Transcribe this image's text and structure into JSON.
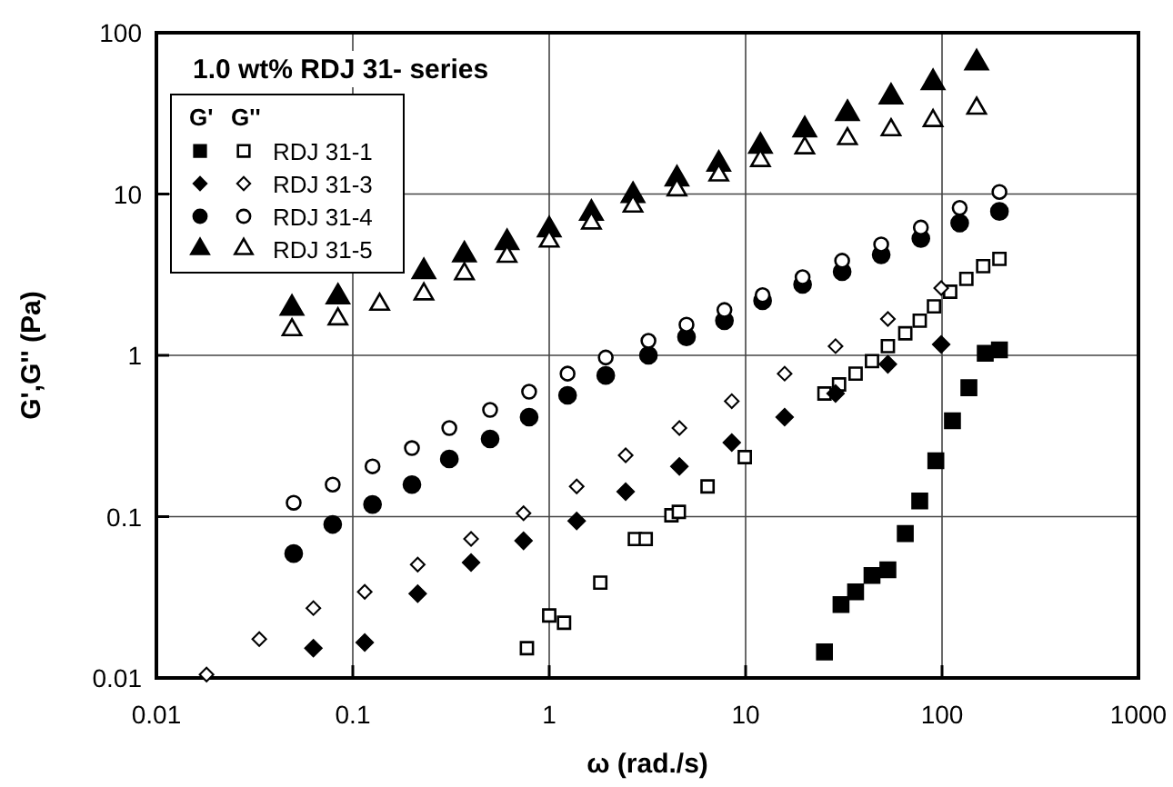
{
  "chart_data": {
    "type": "scatter",
    "title": "1.0 wt% RDJ 31- series",
    "xlabel": "ω (rad./s)",
    "ylabel": "G',G'' (Pa)",
    "log": "xy",
    "grid": true,
    "legend": "top left",
    "legend_title": "G'     G''",
    "xlim": [
      0.01,
      1000
    ],
    "xticks": [
      0.01,
      0.1,
      1,
      10,
      100,
      1000
    ],
    "ylim": [
      0.01,
      100
    ],
    "yticks": [
      0.01,
      0.1,
      1,
      10,
      100
    ],
    "series": [
      {
        "color": "#000000",
        "marker": "square",
        "x": [
          25.2,
          30.6,
          36.3,
          44,
          53,
          65,
          77,
          93,
          113,
          137,
          166,
          196
        ],
        "values": [
          0.0145,
          0.0285,
          0.0342,
          0.0432,
          0.0468,
          0.0785,
          0.125,
          0.222,
          0.393,
          0.63,
          1.03,
          1.08
        ]
      },
      {
        "name": "RDJ 31-1",
        "color": "#ffffff",
        "marker": "square",
        "x": [
          0.77,
          1.0,
          1.19,
          1.82,
          2.73,
          3.1,
          4.19,
          4.57,
          6.4,
          9.9,
          25.2,
          29.9,
          36.3,
          44,
          53,
          65,
          77,
          91,
          110,
          133,
          162,
          196
        ],
        "values": [
          0.0153,
          0.0244,
          0.022,
          0.039,
          0.0727,
          0.0727,
          0.102,
          0.107,
          0.154,
          0.234,
          0.58,
          0.66,
          0.77,
          0.92,
          1.14,
          1.37,
          1.64,
          2.01,
          2.48,
          2.98,
          3.57,
          3.96
        ]
      },
      {
        "color": "#000000",
        "marker": "diamond",
        "x": [
          0.063,
          0.115,
          0.214,
          0.4,
          0.74,
          1.38,
          2.45,
          4.6,
          8.5,
          15.8,
          28.7,
          53,
          99
        ],
        "values": [
          0.0153,
          0.0166,
          0.0333,
          0.052,
          0.0708,
          0.094,
          0.143,
          0.205,
          0.288,
          0.414,
          0.58,
          0.88,
          1.17
        ]
      },
      {
        "name": "RDJ 31-3",
        "color": "#ffffff",
        "marker": "diamond",
        "x": [
          0.018,
          0.0334,
          0.063,
          0.115,
          0.214,
          0.4,
          0.74,
          1.38,
          2.45,
          4.6,
          8.5,
          15.8,
          28.7,
          53,
          99
        ],
        "values": [
          0.0105,
          0.0174,
          0.0271,
          0.0342,
          0.0505,
          0.0727,
          0.105,
          0.154,
          0.24,
          0.354,
          0.52,
          0.77,
          1.14,
          1.68,
          2.61
        ]
      },
      {
        "color": "#000000",
        "marker": "circle",
        "x": [
          0.05,
          0.079,
          0.126,
          0.2,
          0.31,
          0.5,
          0.79,
          1.24,
          1.94,
          3.2,
          5.0,
          7.8,
          12.2,
          19.5,
          31,
          49,
          78,
          123,
          196
        ],
        "values": [
          0.059,
          0.0895,
          0.119,
          0.158,
          0.228,
          0.303,
          0.414,
          0.565,
          0.75,
          1.0,
          1.3,
          1.64,
          2.18,
          2.75,
          3.3,
          4.2,
          5.3,
          6.6,
          7.8
        ]
      },
      {
        "name": "RDJ 31-4",
        "color": "#ffffff",
        "marker": "circle",
        "x": [
          0.05,
          0.079,
          0.126,
          0.2,
          0.31,
          0.5,
          0.79,
          1.24,
          1.94,
          3.2,
          5.0,
          7.8,
          12.2,
          19.5,
          31,
          49,
          78,
          123,
          196
        ],
        "values": [
          0.122,
          0.158,
          0.205,
          0.266,
          0.354,
          0.459,
          0.595,
          0.77,
          0.97,
          1.23,
          1.55,
          1.91,
          2.36,
          3.05,
          3.86,
          4.87,
          6.2,
          8.2,
          10.3
        ]
      },
      {
        "color": "#000000",
        "marker": "triangle",
        "x": [
          0.049,
          0.084,
          0.23,
          0.37,
          0.61,
          1.0,
          1.64,
          2.67,
          4.47,
          7.3,
          11.9,
          20,
          33,
          55,
          90,
          150
        ],
        "values": [
          1.96,
          2.3,
          3.3,
          4.2,
          5.0,
          6.0,
          7.6,
          9.8,
          12.4,
          15.3,
          19.8,
          25,
          31.6,
          40,
          49,
          65
        ]
      },
      {
        "name": "RDJ 31-5",
        "color": "#ffffff",
        "marker": "triangle",
        "x": [
          0.049,
          0.084,
          0.137,
          0.23,
          0.37,
          0.61,
          1.0,
          1.64,
          2.67,
          4.47,
          7.3,
          11.9,
          20,
          33,
          55,
          90,
          150
        ],
        "values": [
          1.44,
          1.68,
          2.07,
          2.4,
          3.2,
          4.1,
          5.1,
          6.6,
          8.4,
          10.6,
          13.1,
          16.1,
          19.3,
          22,
          25,
          28.5,
          34
        ]
      }
    ]
  }
}
